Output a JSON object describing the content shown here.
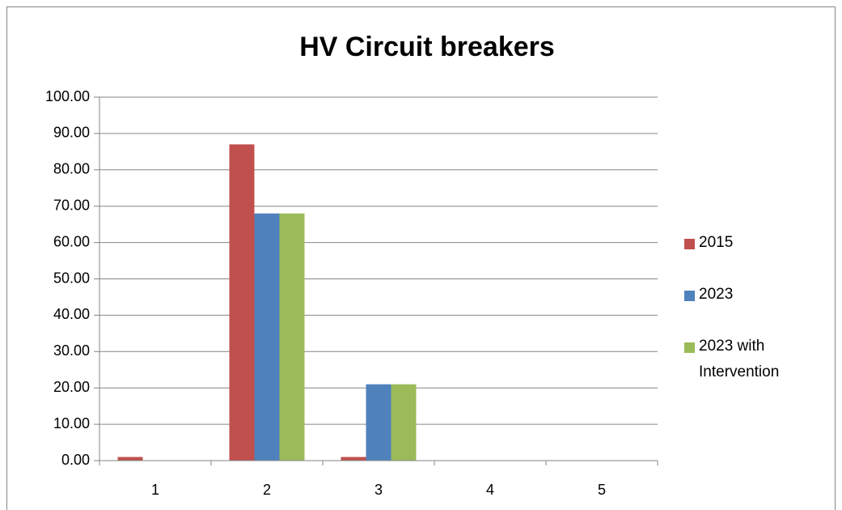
{
  "chart_data": {
    "type": "bar",
    "title": "HV Circuit breakers",
    "categories": [
      "1",
      "2",
      "3",
      "4",
      "5"
    ],
    "series": [
      {
        "name": "2015",
        "color": "#c0504d",
        "values": [
          1,
          87,
          1,
          0,
          0
        ]
      },
      {
        "name": "2023",
        "color": "#4f81bd",
        "values": [
          0,
          68,
          21,
          0,
          0
        ]
      },
      {
        "name": "2023 with Intervention",
        "color": "#9bbb59",
        "values": [
          0,
          68,
          21,
          0,
          0
        ]
      }
    ],
    "ylim": [
      0,
      100
    ],
    "yticks": [
      {
        "value": 0,
        "label": "0.00"
      },
      {
        "value": 10,
        "label": "10.00"
      },
      {
        "value": 20,
        "label": "20.00"
      },
      {
        "value": 30,
        "label": "30.00"
      },
      {
        "value": 40,
        "label": "40.00"
      },
      {
        "value": 50,
        "label": "50.00"
      },
      {
        "value": 60,
        "label": "60.00"
      },
      {
        "value": 70,
        "label": "70.00"
      },
      {
        "value": 80,
        "label": "80.00"
      },
      {
        "value": 90,
        "label": "90.00"
      },
      {
        "value": 100,
        "label": "100.00"
      }
    ],
    "grid": true,
    "legend": "right"
  }
}
